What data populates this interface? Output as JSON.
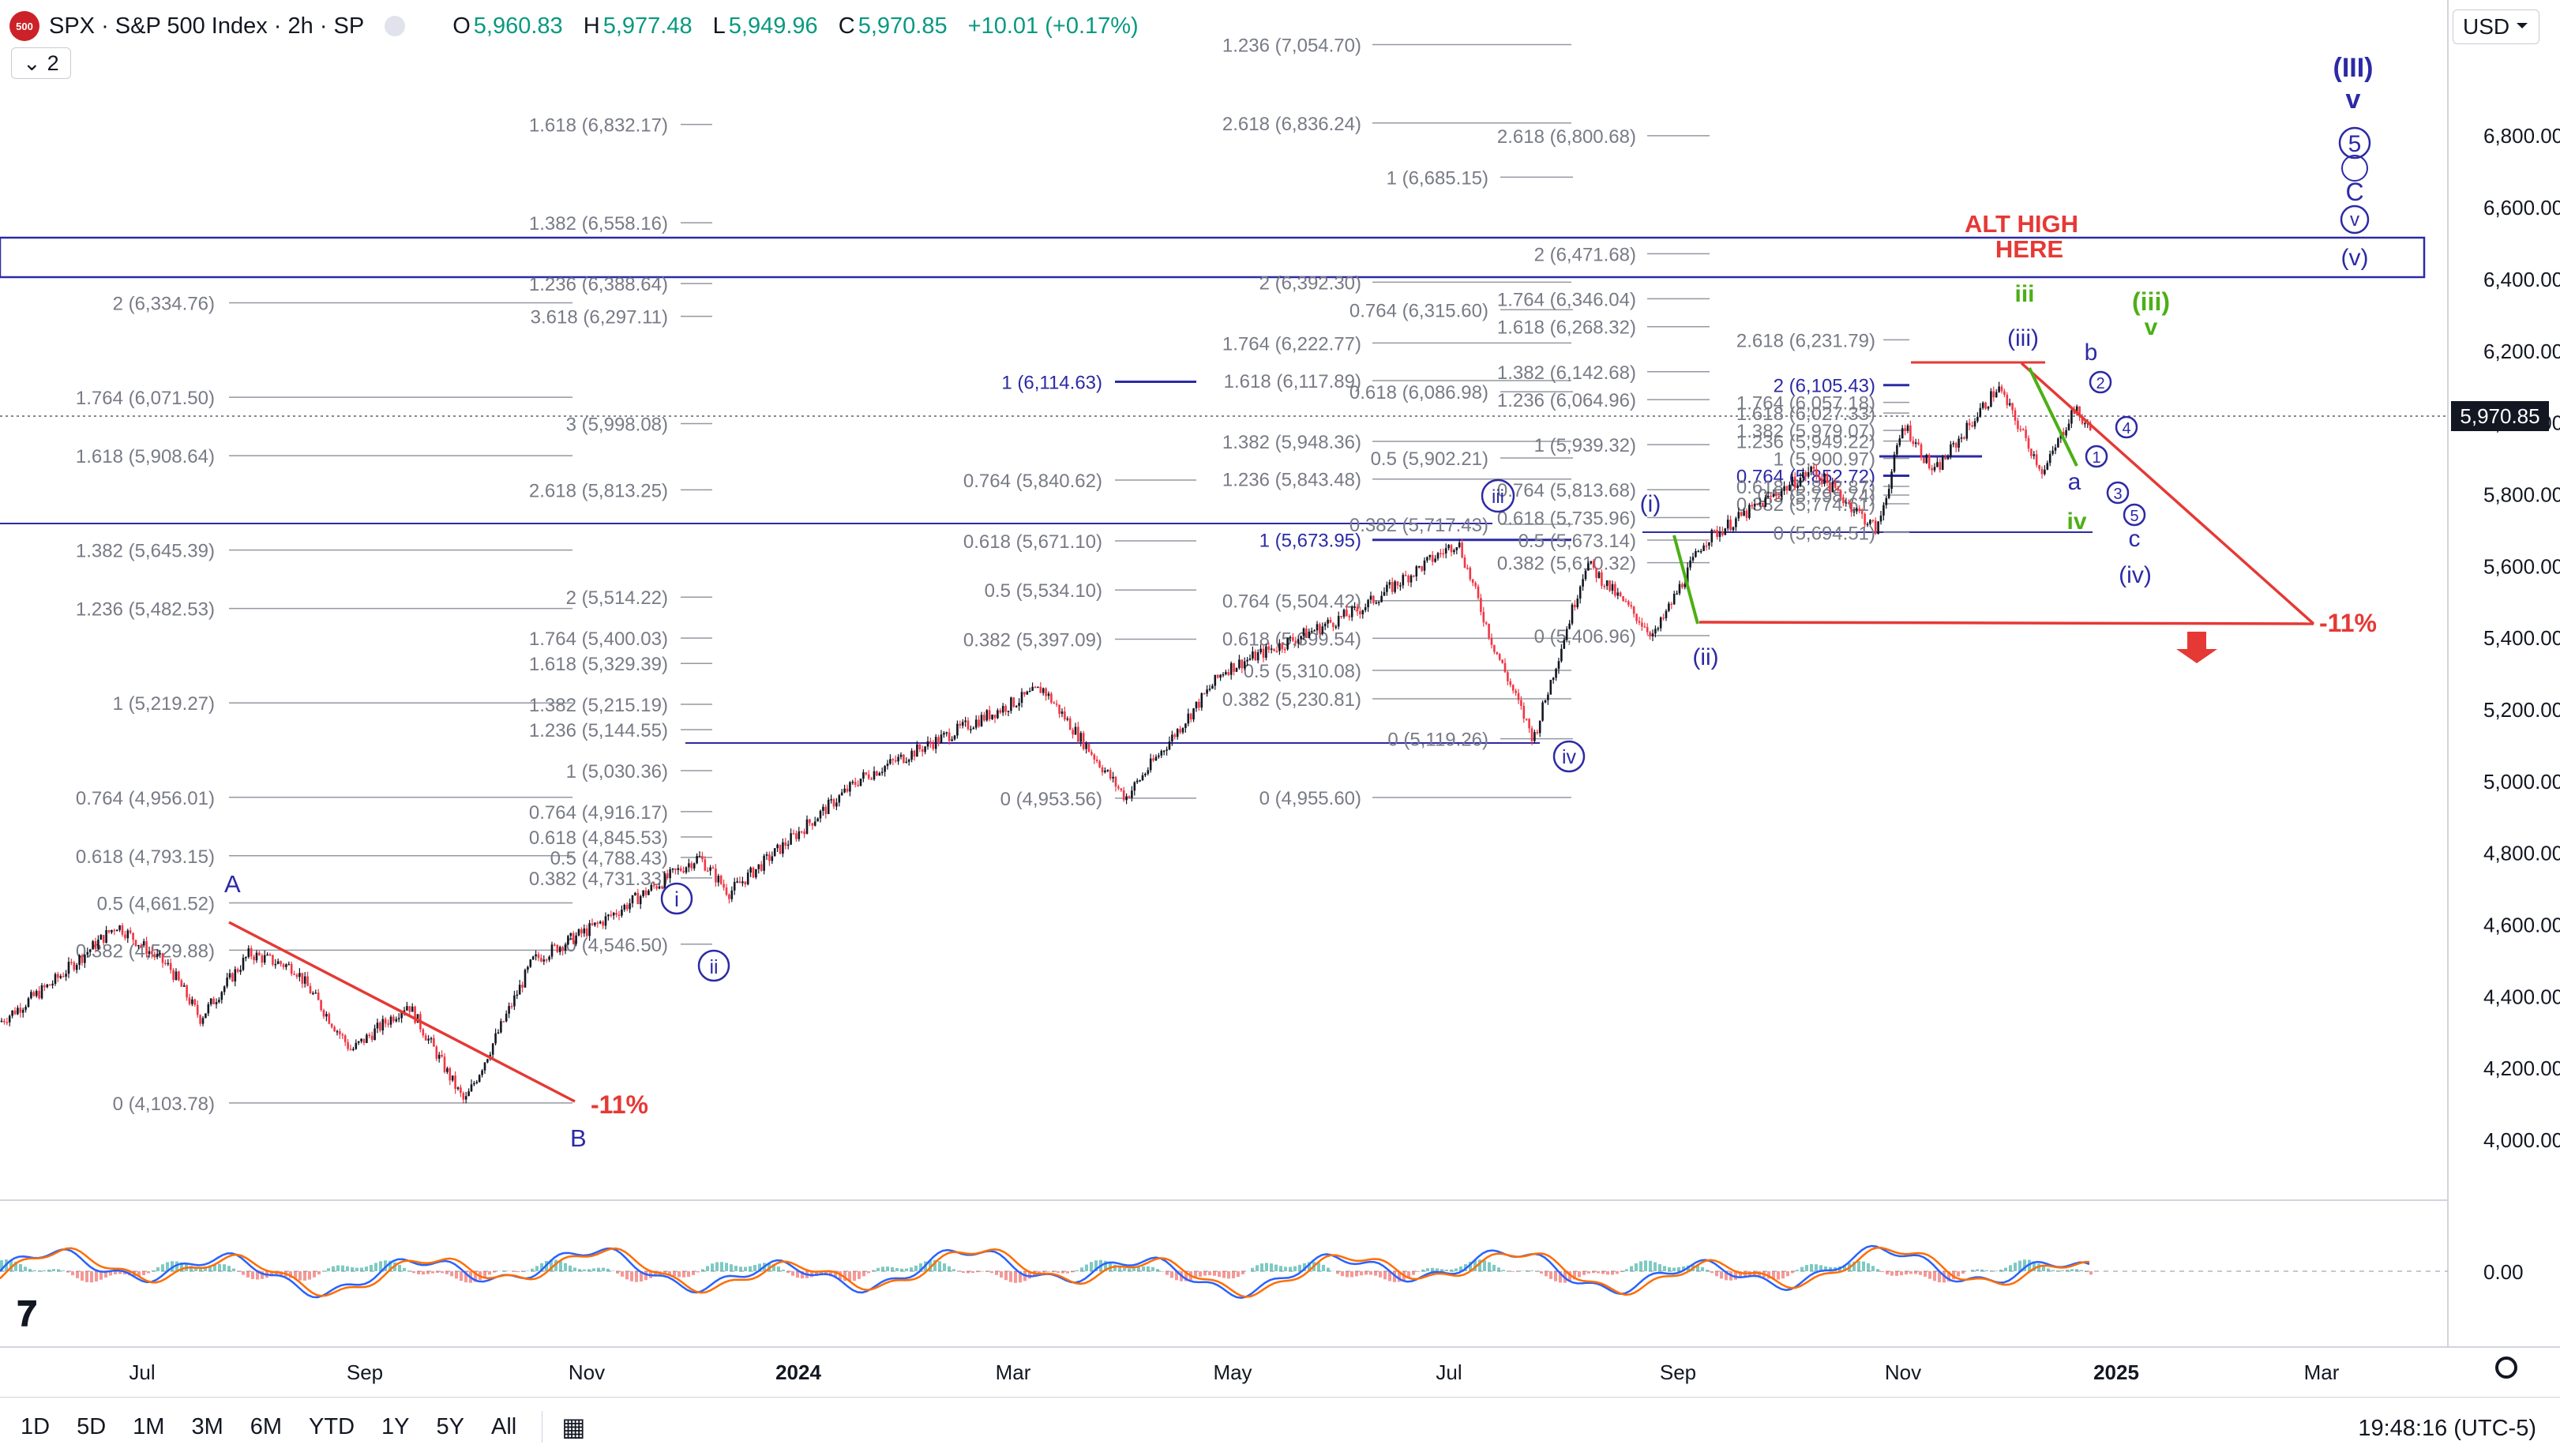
{
  "header": {
    "symbol": "SPX · S&P 500 Index · 2h · SP",
    "logo_text": "500",
    "open_label": "O",
    "open": "5,960.83",
    "high_label": "H",
    "high": "5,977.48",
    "low_label": "L",
    "low": "5,949.96",
    "close_label": "C",
    "close": "5,970.85",
    "change": "+10.01 (+0.17%)",
    "indicator_count": "2",
    "currency": "USD"
  },
  "last_price": "5,970.85",
  "colors": {
    "accent": "#2962ff",
    "up": "#089981",
    "down": "#f23645",
    "wave_blue": "#2c2aa5",
    "wave_green": "#4caf15",
    "alert_red": "#e53935"
  },
  "chart_data": {
    "type": "line",
    "title": "SPX · S&P 500 Index · 2h · SP",
    "ylabel": "USD",
    "ylim": [
      3900,
      7100
    ],
    "x_axis": [
      "Jul",
      "Sep",
      "Nov",
      "2024",
      "Mar",
      "May",
      "Jul",
      "Sep",
      "Nov",
      "2025",
      "Mar"
    ],
    "y_ticks": [
      "4,000.00",
      "4,200.00",
      "4,400.00",
      "4,600.00",
      "4,800.00",
      "5,000.00",
      "5,200.00",
      "5,400.00",
      "5,600.00",
      "5,800.00",
      "6,000.00",
      "6,200.00",
      "6,400.00",
      "6,600.00",
      "6,800.00"
    ],
    "series": [
      {
        "points": [
          [
            "Jun 26 2023",
            4330
          ],
          [
            "Jul 10 2023",
            4440
          ],
          [
            "Jul 27 2023",
            4600
          ],
          [
            "Aug 10 2023",
            4480
          ],
          [
            "Aug 18 2023",
            4340
          ],
          [
            "Aug 31 2023",
            4520
          ],
          [
            "Sep 12 2023",
            4480
          ],
          [
            "Sep 27 2023",
            4250
          ],
          [
            "Oct 12 2023",
            4380
          ],
          [
            "Oct 27 2023",
            4105
          ],
          [
            "Nov 14 2023",
            4500
          ],
          [
            "Dec 1 2023",
            4600
          ],
          [
            "Dec 28 2023",
            4790
          ],
          [
            "Jan 5 2024",
            4690
          ],
          [
            "Feb 9 2024",
            5010
          ],
          [
            "Mar 28 2024",
            5260
          ],
          [
            "Apr 19 2024",
            4955
          ],
          [
            "May 15 2024",
            5310
          ],
          [
            "Jun 20 2024",
            5480
          ],
          [
            "Jul 16 2024",
            5670
          ],
          [
            "Jul 25 2024",
            5390
          ],
          [
            "Aug 5 2024",
            5119
          ],
          [
            "Aug 19 2024",
            5610
          ],
          [
            "Sep 6 2024",
            5406
          ],
          [
            "Sep 19 2024",
            5670
          ],
          [
            "Oct 18 2024",
            5870
          ],
          [
            "Nov 4 2024",
            5700
          ],
          [
            "Nov 11 2024",
            6000
          ],
          [
            "Nov 19 2024",
            5860
          ],
          [
            "Dec 6 2024",
            6100
          ],
          [
            "Dec 18 2024",
            5860
          ],
          [
            "Dec 26 2024",
            6040
          ],
          [
            "Dec 31 2024",
            5971
          ]
        ]
      }
    ],
    "annotations": {
      "fib_left": [
        "2 (6,334.76)",
        "1.764 (6,071.50)",
        "1.618 (5,908.64)",
        "1.382 (5,645.39)",
        "1.236 (5,482.53)",
        "1 (5,219.27)",
        "0.764 (4,956.01)",
        "0.618 (4,793.15)",
        "0.5 (4,661.52)",
        "0.382 (4,529.88)",
        "0 (4,103.78)"
      ],
      "fib_col2": [
        "1.618 (6,832.17)",
        "1.382 (6,558.16)",
        "1.236 (6,388.64)",
        "3.618 (6,297.11)",
        "3 (5,998.08)",
        "2.618 (5,813.25)",
        "2 (5,514.22)",
        "1.764 (5,400.03)",
        "1.618 (5,329.39)",
        "1.382 (5,215.19)",
        "1.236 (5,144.55)",
        "1 (5,030.36)",
        "0.764 (4,916.17)",
        "0.618 (4,845.53)",
        "0.5 (4,788.43)",
        "0.382 (4,731.33)",
        "0 (4,546.50)"
      ],
      "fib_col3": [
        "1 (6,114.63)",
        "0.764 (5,840.62)",
        "0.618 (5,671.10)",
        "0.5 (5,534.10)",
        "0.382 (5,397.09)",
        "0 (4,953.56)"
      ],
      "fib_col4": [
        "1.236 (7,054.70)",
        "2.618 (6,836.24)",
        "2 (6,392.30)",
        "1.764 (6,222.77)",
        "1.618 (6,117.89)",
        "1.382 (5,948.36)",
        "1.236 (5,843.48)",
        "1 (5,673.95)",
        "0.764 (5,504.42)",
        "0.618 (5,399.54)",
        "0.5 (5,310.08)",
        "0.382 (5,230.81)",
        "0 (4,955.60)"
      ],
      "fib_col5": [
        "1 (6,685.15)",
        "0.764 (6,315.60)",
        "0.618 (6,086.98)",
        "0.5 (5,902.21)",
        "0.382 (5,717.43)",
        "0 (5,119.26)"
      ],
      "fib_col6": [
        "2.618 (6,800.68)",
        "2 (6,471.68)",
        "1.764 (6,346.04)",
        "1.618 (6,268.32)",
        "1.382 (6,142.68)",
        "1.236 (6,064.96)",
        "1 (5,939.32)",
        "0.764 (5,813.68)",
        "0.618 (5,735.96)",
        "0.5 (5,673.14)",
        "0.382 (5,610.32)",
        "0 (5,406.96)"
      ],
      "fib_col7": [
        "2.618 (6,231.79)",
        "2 (6,105.43)",
        "1.764 (6,057.18)",
        "1.618 (6,027.33)",
        "1.382 (5,979.07)",
        "1.236 (5,949.22)",
        "1 (5,900.97)",
        "0.764 (5,852.72)",
        "0.618 (5,822.87)",
        "0.5 (5,798.74)",
        "0.382 (5,774.61)",
        "0 (5,694.51)"
      ],
      "alt_high_line1": "ALT HIGH",
      "alt_high_line2": "HERE",
      "pct_left": "-11%",
      "pct_right": "-11%",
      "wave_labels": {
        "A": "A",
        "B": "B",
        "i": "i",
        "ii": "ii",
        "iii": "iii",
        "iv": "iv",
        "w_i": "(i)",
        "w_ii": "(ii)",
        "w_iii": "(iii)",
        "w_iv": "(iv)",
        "w_v": "(v)",
        "III": "(III)",
        "v": "v",
        "c5": "5",
        "C": "C",
        "green_iii": "iii",
        "green_iv": "iv",
        "green_iii_p": "(iii)",
        "green_v": "v",
        "a": "a",
        "b": "b",
        "c": "c",
        "n1": "1",
        "n2": "2",
        "n3": "3",
        "n4": "4",
        "n5": "5"
      }
    },
    "oscillator": {
      "zero_label": "0.00"
    }
  },
  "timeframes": [
    "1D",
    "5D",
    "1M",
    "3M",
    "6M",
    "YTD",
    "1Y",
    "5Y",
    "All"
  ],
  "clock": "19:48:16 (UTC-5)"
}
